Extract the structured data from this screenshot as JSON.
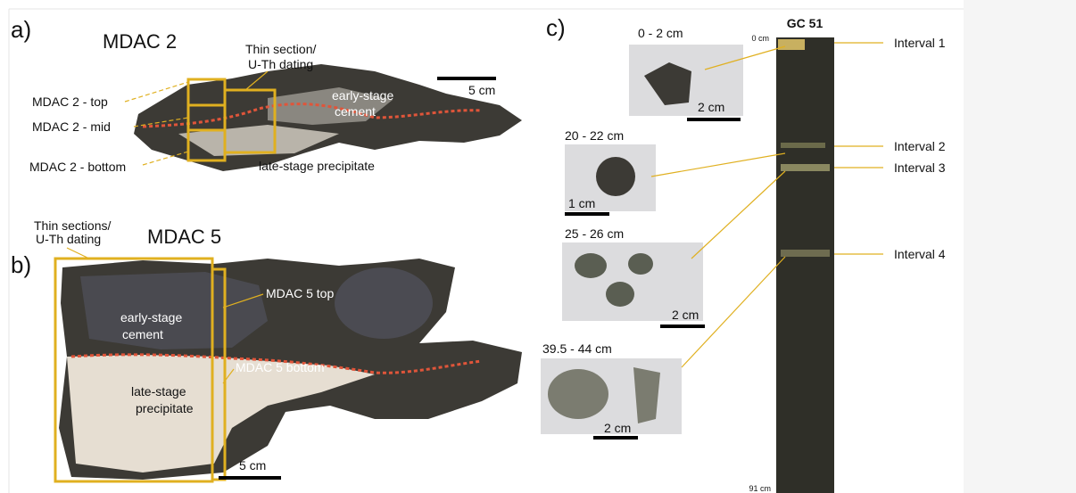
{
  "panel_a": {
    "label": "a)",
    "title": "MDAC 2",
    "annotation": [
      "Thin section/",
      "U-Th dating"
    ],
    "scale_bar": "5 cm",
    "boxes": [
      "MDAC 2 - top",
      "MDAC 2 - mid",
      "MDAC 2 - bottom"
    ],
    "early": [
      "early-stage",
      "cement"
    ],
    "late": "late-stage precipitate"
  },
  "panel_b": {
    "label": "b)",
    "title": "MDAC 5",
    "annotation": [
      "Thin sections/",
      "U-Th dating"
    ],
    "scale_bar": "5 cm",
    "boxes": [
      "MDAC 5 top",
      "MDAC 5 bottom"
    ],
    "early": [
      "early-stage",
      "cement"
    ],
    "late": [
      "late-stage",
      "precipitate"
    ]
  },
  "panel_c": {
    "label": "c)",
    "core": "GC 51",
    "top_depth": "0 cm",
    "bottom_depth": "91 cm",
    "samples": [
      {
        "depth": "0 - 2 cm",
        "scale": "2 cm"
      },
      {
        "depth": "20 - 22 cm",
        "scale": "1 cm"
      },
      {
        "depth": "25 - 26 cm",
        "scale": "2 cm"
      },
      {
        "depth": "39.5 - 44 cm",
        "scale": "2 cm"
      }
    ],
    "intervals": [
      "Interval 1",
      "Interval 2",
      "Interval 3",
      "Interval 4"
    ]
  }
}
